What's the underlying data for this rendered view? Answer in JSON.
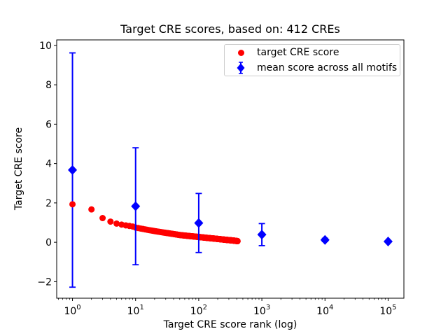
{
  "title": "Target CRE scores, based on: 412 CREs",
  "axes": {
    "yticks": {
      "values": [
        10,
        8,
        6,
        4,
        2,
        0,
        -2
      ],
      "labels": [
        "10",
        "8",
        "6",
        "4",
        "2",
        "0",
        "−2"
      ]
    },
    "xticks": {
      "values": [
        1,
        10,
        100,
        1000,
        10000,
        100000
      ],
      "base": "10",
      "exponents": [
        "0",
        "1",
        "2",
        "3",
        "4",
        "5"
      ]
    }
  },
  "chart_data": {
    "type": "scatter",
    "title": "Target CRE scores, based on: 412 CREs",
    "xlabel": "Target CRE score rank (log)",
    "ylabel": "Target CRE score",
    "x_scale": "log10",
    "xlim_log10": [
      -0.25,
      5.25
    ],
    "ylim": [
      -2.84,
      10.28
    ],
    "grid": false,
    "legend_position": "upper right",
    "series": [
      {
        "name": "target CRE score",
        "type": "scatter",
        "marker": "circle",
        "color": "#ff0000",
        "n_points": 412,
        "sampling": "412 points at integer ranks 1-412, log-linear between anchors",
        "anchors": [
          [
            1,
            1.93
          ],
          [
            2,
            1.67
          ],
          [
            3,
            1.23
          ],
          [
            4,
            1.05
          ],
          [
            5,
            0.95
          ],
          [
            6,
            0.9
          ],
          [
            7,
            0.86
          ],
          [
            8,
            0.83
          ],
          [
            9,
            0.8
          ],
          [
            10,
            0.75
          ],
          [
            12,
            0.7
          ],
          [
            15,
            0.64
          ],
          [
            20,
            0.57
          ],
          [
            25,
            0.52
          ],
          [
            30,
            0.48
          ],
          [
            40,
            0.42
          ],
          [
            50,
            0.37
          ],
          [
            70,
            0.32
          ],
          [
            100,
            0.27
          ],
          [
            140,
            0.22
          ],
          [
            200,
            0.17
          ],
          [
            280,
            0.12
          ],
          [
            350,
            0.09
          ],
          [
            412,
            0.06
          ]
        ]
      },
      {
        "name": "mean score across all motifs",
        "type": "scatter+errorbar",
        "marker": "diamond",
        "color": "#0000ff",
        "x": [
          1,
          10,
          100,
          1000,
          10000,
          100000
        ],
        "y": [
          3.67,
          1.83,
          0.98,
          0.39,
          0.12,
          0.04
        ],
        "yerr": [
          5.95,
          2.97,
          1.5,
          0.56,
          0.08,
          0.02
        ]
      }
    ]
  },
  "colors": {
    "red": "#ff0000",
    "blue": "#0000ff",
    "axis": "#000000",
    "legend_border": "#cccccc",
    "background": "#ffffff"
  }
}
